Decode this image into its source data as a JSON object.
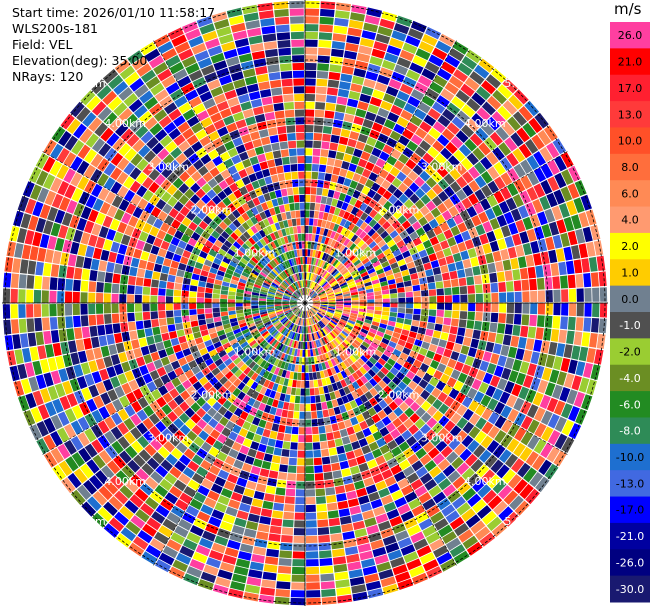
{
  "info": {
    "start_time": "Start time: 2026/01/10 11:58:17",
    "instrument": "WLS200s-181",
    "field": "Field: VEL",
    "elevation": "Elevation(deg): 35.00",
    "nrays": "NRays: 120"
  },
  "colorbar": {
    "unit": "m/s",
    "labels": [
      "26.0",
      "21.0",
      "17.0",
      "13.0",
      "10.0",
      "8.0",
      "6.0",
      "4.0",
      "2.0",
      "1.0",
      "0.0",
      "-1.0",
      "-2.0",
      "-4.0",
      "-6.0",
      "-8.0",
      "-10.0",
      "-13.0",
      "-17.0",
      "-21.0",
      "-26.0",
      "-30.0"
    ],
    "colors": [
      "#ff3fa0",
      "#ff0000",
      "#ff2030",
      "#ff3a3a",
      "#ff5028",
      "#ff6e3c",
      "#ff8a55",
      "#ff9a70",
      "#ffff00",
      "#ffcc00",
      "#708090",
      "#505050",
      "#9acd32",
      "#6b8e23",
      "#228b22",
      "#2e8b57",
      "#1e6fd0",
      "#4169e1",
      "#0000ff",
      "#0000a0",
      "#000080",
      "#191970"
    ]
  },
  "range_labels": [
    "1.00km",
    "2.00km",
    "3.00km",
    "4.00km",
    "5.00km"
  ],
  "plot": {
    "center_value_note": "",
    "nrays": 120
  }
}
